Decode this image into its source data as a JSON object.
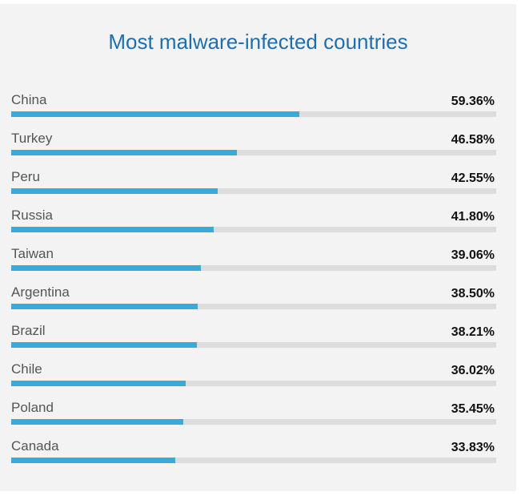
{
  "chart_data": {
    "type": "bar",
    "orientation": "horizontal",
    "title": "Most malware-infected countries",
    "xlim": [
      0,
      100
    ],
    "categories": [
      "China",
      "Turkey",
      "Peru",
      "Russia",
      "Taiwan",
      "Argentina",
      "Brazil",
      "Chile",
      "Poland",
      "Canada"
    ],
    "values": [
      59.36,
      46.58,
      42.55,
      41.8,
      39.06,
      38.5,
      38.21,
      36.02,
      35.45,
      33.83
    ],
    "value_labels": [
      "59.36%",
      "46.58%",
      "42.55%",
      "41.80%",
      "39.06%",
      "38.50%",
      "38.21%",
      "36.02%",
      "35.45%",
      "33.83%"
    ],
    "colors": {
      "bar": "#3aa9dc",
      "track": "#dcdcdc",
      "title": "#1f6fb0"
    },
    "grid": false
  }
}
